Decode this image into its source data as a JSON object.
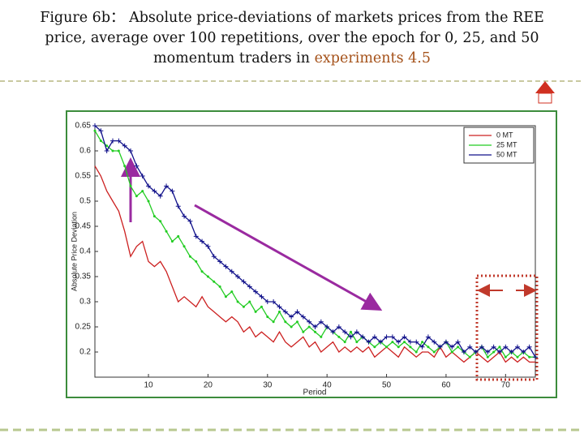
{
  "title_lines": [
    "Figure 6b：  Absolute price-deviations of markets  prices from the REE",
    "price, average over 100 repetitions, over the epoch for 0, 25, and 50",
    "momentum traders  in"
  ],
  "title_highlight": "experiments 4.5",
  "chart_data": {
    "type": "line",
    "x_label": "Period",
    "y_label": "Absolute Price Deviation",
    "x": [
      1,
      2,
      3,
      4,
      5,
      6,
      7,
      8,
      9,
      10,
      11,
      12,
      13,
      14,
      15,
      16,
      17,
      18,
      19,
      20,
      21,
      22,
      23,
      24,
      25,
      26,
      27,
      28,
      29,
      30,
      31,
      32,
      33,
      34,
      35,
      36,
      37,
      38,
      39,
      40,
      41,
      42,
      43,
      44,
      45,
      46,
      47,
      48,
      49,
      50,
      51,
      52,
      53,
      54,
      55,
      56,
      57,
      58,
      59,
      60,
      61,
      62,
      63,
      64,
      65,
      66,
      67,
      68,
      69,
      70,
      71,
      72,
      73,
      74,
      75
    ],
    "series": [
      {
        "name": "0 MT",
        "color": "#cc2020",
        "marker": "none",
        "values": [
          0.57,
          0.55,
          0.52,
          0.5,
          0.48,
          0.44,
          0.39,
          0.41,
          0.42,
          0.38,
          0.37,
          0.38,
          0.36,
          0.33,
          0.3,
          0.31,
          0.3,
          0.29,
          0.31,
          0.29,
          0.28,
          0.27,
          0.26,
          0.27,
          0.26,
          0.24,
          0.25,
          0.23,
          0.24,
          0.23,
          0.22,
          0.24,
          0.22,
          0.21,
          0.22,
          0.23,
          0.21,
          0.22,
          0.2,
          0.21,
          0.22,
          0.2,
          0.21,
          0.2,
          0.21,
          0.2,
          0.21,
          0.19,
          0.2,
          0.21,
          0.2,
          0.19,
          0.21,
          0.2,
          0.19,
          0.2,
          0.2,
          0.19,
          0.21,
          0.19,
          0.2,
          0.19,
          0.18,
          0.19,
          0.2,
          0.19,
          0.18,
          0.19,
          0.2,
          0.18,
          0.19,
          0.18,
          0.19,
          0.18,
          0.18
        ]
      },
      {
        "name": "25 MT",
        "color": "#22cc22",
        "marker": "dot",
        "values": [
          0.64,
          0.62,
          0.61,
          0.6,
          0.6,
          0.57,
          0.53,
          0.51,
          0.52,
          0.5,
          0.47,
          0.46,
          0.44,
          0.42,
          0.43,
          0.41,
          0.39,
          0.38,
          0.36,
          0.35,
          0.34,
          0.33,
          0.31,
          0.32,
          0.3,
          0.29,
          0.3,
          0.28,
          0.29,
          0.27,
          0.26,
          0.28,
          0.26,
          0.25,
          0.26,
          0.24,
          0.25,
          0.24,
          0.23,
          0.25,
          0.24,
          0.23,
          0.22,
          0.24,
          0.22,
          0.23,
          0.22,
          0.21,
          0.22,
          0.21,
          0.22,
          0.21,
          0.22,
          0.21,
          0.2,
          0.22,
          0.21,
          0.2,
          0.21,
          0.22,
          0.2,
          0.21,
          0.2,
          0.19,
          0.2,
          0.21,
          0.19,
          0.2,
          0.21,
          0.19,
          0.2,
          0.19,
          0.2,
          0.19,
          0.19
        ]
      },
      {
        "name": "50 MT",
        "color": "#10108a",
        "marker": "plus",
        "values": [
          0.65,
          0.64,
          0.6,
          0.62,
          0.62,
          0.61,
          0.6,
          0.57,
          0.55,
          0.53,
          0.52,
          0.51,
          0.53,
          0.52,
          0.49,
          0.47,
          0.46,
          0.43,
          0.42,
          0.41,
          0.39,
          0.38,
          0.37,
          0.36,
          0.35,
          0.34,
          0.33,
          0.32,
          0.31,
          0.3,
          0.3,
          0.29,
          0.28,
          0.27,
          0.28,
          0.27,
          0.26,
          0.25,
          0.26,
          0.25,
          0.24,
          0.25,
          0.24,
          0.23,
          0.24,
          0.23,
          0.22,
          0.23,
          0.22,
          0.23,
          0.23,
          0.22,
          0.23,
          0.22,
          0.22,
          0.21,
          0.23,
          0.22,
          0.21,
          0.22,
          0.21,
          0.22,
          0.2,
          0.21,
          0.2,
          0.21,
          0.2,
          0.21,
          0.2,
          0.21,
          0.2,
          0.21,
          0.2,
          0.21,
          0.19
        ]
      }
    ],
    "xlim": [
      1,
      75
    ],
    "xticks": [
      10,
      20,
      30,
      40,
      50,
      60,
      70
    ],
    "ylim": [
      0.15,
      0.65
    ],
    "yticks": [
      0.2,
      0.25,
      0.3,
      0.35,
      0.4,
      0.45,
      0.5,
      0.55,
      0.6,
      0.65
    ],
    "grid": false,
    "legend": "upper right"
  }
}
